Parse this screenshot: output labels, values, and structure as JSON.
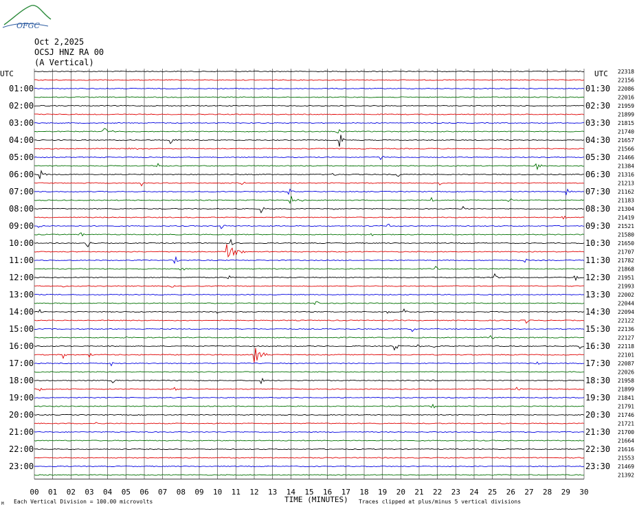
{
  "logo_text": "OFGC",
  "header": {
    "date": "Oct 2,2025",
    "station": "OCSJ HNZ RA 00",
    "component": "(A Vertical)"
  },
  "left_axis_title": "UTC",
  "right_axis_title": "UTC",
  "left_hour_labels": [
    "01:00",
    "02:00",
    "03:00",
    "04:00",
    "05:00",
    "06:00",
    "07:00",
    "08:00",
    "09:00",
    "10:00",
    "11:00",
    "12:00",
    "13:00",
    "14:00",
    "15:00",
    "16:00",
    "17:00",
    "18:00",
    "19:00",
    "20:00",
    "21:00",
    "22:00",
    "23:00"
  ],
  "right_hour_labels": [
    "01:30",
    "02:30",
    "03:30",
    "04:30",
    "05:30",
    "06:30",
    "07:30",
    "08:30",
    "09:30",
    "10:30",
    "11:30",
    "12:30",
    "13:30",
    "14:30",
    "15:30",
    "16:30",
    "17:30",
    "18:30",
    "19:30",
    "20:30",
    "21:30",
    "22:30",
    "23:30"
  ],
  "footer": {
    "left_note": "Each Vertical Division =  100.00 microvolts",
    "right_note": "Traces clipped at plus/minus 5 vertical divisions",
    "corner_mark": "M"
  },
  "colors": {
    "trace_cycle": [
      "#000000",
      "#e00000",
      "#0000e0",
      "#007000"
    ],
    "grid": "#000000"
  },
  "chart_data": {
    "type": "line",
    "title": "",
    "xlabel": "TIME (MINUTES)",
    "ylabel": "",
    "x_ticks": [
      "00",
      "01",
      "02",
      "03",
      "04",
      "05",
      "06",
      "07",
      "08",
      "09",
      "10",
      "11",
      "12",
      "13",
      "14",
      "15",
      "16",
      "17",
      "18",
      "19",
      "20",
      "21",
      "22",
      "23",
      "24",
      "25",
      "26",
      "27",
      "28",
      "29",
      "30"
    ],
    "xlim": [
      0,
      30
    ],
    "grid": true,
    "trace_count": 48,
    "trace_minutes": 30,
    "right_values": [
      "22318",
      "22156",
      "22086",
      "22016",
      "21959",
      "21899",
      "21815",
      "21740",
      "21657",
      "21566",
      "21466",
      "21384",
      "21316",
      "21213",
      "21162",
      "21183",
      "21304",
      "21419",
      "21521",
      "21580",
      "21650",
      "21707",
      "21782",
      "21868",
      "21951",
      "21993",
      "22002",
      "22044",
      "22094",
      "22122",
      "22136",
      "22127",
      "22118",
      "22101",
      "22087",
      "22026",
      "21958",
      "21899",
      "21841",
      "21791",
      "21746",
      "21721",
      "21700",
      "21664",
      "21616",
      "21553",
      "21469",
      "21392"
    ],
    "events": [
      {
        "trace": 7,
        "minute": 3.8,
        "amp": 6,
        "dur": 1.0
      },
      {
        "trace": 8,
        "minute": 7.4,
        "amp": 6,
        "dur": 0.5
      },
      {
        "trace": 9,
        "minute": 5.2,
        "amp": 3,
        "dur": 0.8
      },
      {
        "trace": 8,
        "minute": 16.7,
        "amp": 14,
        "dur": 0.4
      },
      {
        "trace": 7,
        "minute": 16.5,
        "amp": 6,
        "dur": 0.5
      },
      {
        "trace": 10,
        "minute": 18.9,
        "amp": 5,
        "dur": 0.3
      },
      {
        "trace": 11,
        "minute": 6.7,
        "amp": 6,
        "dur": 0.3
      },
      {
        "trace": 11,
        "minute": 27.4,
        "amp": 9,
        "dur": 0.4
      },
      {
        "trace": 12,
        "minute": 0.3,
        "amp": 8,
        "dur": 0.6
      },
      {
        "trace": 12,
        "minute": 16.2,
        "amp": 6,
        "dur": 0.4
      },
      {
        "trace": 12,
        "minute": 19.8,
        "amp": 5,
        "dur": 0.3
      },
      {
        "trace": 13,
        "minute": 5.9,
        "amp": 4,
        "dur": 0.3
      },
      {
        "trace": 13,
        "minute": 11.3,
        "amp": 5,
        "dur": 0.3
      },
      {
        "trace": 13,
        "minute": 22.1,
        "amp": 6,
        "dur": 0.3
      },
      {
        "trace": 14,
        "minute": 13.9,
        "amp": 6,
        "dur": 0.5
      },
      {
        "trace": 14,
        "minute": 29.0,
        "amp": 7,
        "dur": 0.4
      },
      {
        "trace": 15,
        "minute": 14.0,
        "amp": 8,
        "dur": 0.8
      },
      {
        "trace": 15,
        "minute": 21.7,
        "amp": 5,
        "dur": 0.3
      },
      {
        "trace": 15,
        "minute": 25.9,
        "amp": 5,
        "dur": 0.3
      },
      {
        "trace": 16,
        "minute": 12.4,
        "amp": 7,
        "dur": 0.4
      },
      {
        "trace": 16,
        "minute": 16.1,
        "amp": 5,
        "dur": 0.4
      },
      {
        "trace": 16,
        "minute": 23.4,
        "amp": 4,
        "dur": 0.3
      },
      {
        "trace": 17,
        "minute": 28.8,
        "amp": 5,
        "dur": 0.3
      },
      {
        "trace": 18,
        "minute": 0.2,
        "amp": 4,
        "dur": 0.4
      },
      {
        "trace": 18,
        "minute": 10.2,
        "amp": 7,
        "dur": 0.4
      },
      {
        "trace": 18,
        "minute": 19.3,
        "amp": 5,
        "dur": 0.3
      },
      {
        "trace": 19,
        "minute": 2.5,
        "amp": 6,
        "dur": 0.3
      },
      {
        "trace": 19,
        "minute": 18.3,
        "amp": 5,
        "dur": 0.3
      },
      {
        "trace": 20,
        "minute": 2.9,
        "amp": 6,
        "dur": 0.3
      },
      {
        "trace": 20,
        "minute": 10.7,
        "amp": 6,
        "dur": 0.3
      },
      {
        "trace": 21,
        "minute": 10.5,
        "amp": 12,
        "dur": 1.0
      },
      {
        "trace": 22,
        "minute": 7.7,
        "amp": 6,
        "dur": 0.4
      },
      {
        "trace": 22,
        "minute": 26.7,
        "amp": 6,
        "dur": 0.3
      },
      {
        "trace": 23,
        "minute": 8.0,
        "amp": 4,
        "dur": 0.4
      },
      {
        "trace": 23,
        "minute": 21.9,
        "amp": 5,
        "dur": 0.3
      },
      {
        "trace": 24,
        "minute": 10.6,
        "amp": 5,
        "dur": 0.3
      },
      {
        "trace": 24,
        "minute": 25.1,
        "amp": 7,
        "dur": 0.3
      },
      {
        "trace": 24,
        "minute": 29.5,
        "amp": 7,
        "dur": 0.3
      },
      {
        "trace": 25,
        "minute": 1.5,
        "amp": 4,
        "dur": 0.3
      },
      {
        "trace": 25,
        "minute": 7.4,
        "amp": 5,
        "dur": 0.3
      },
      {
        "trace": 27,
        "minute": 15.3,
        "amp": 5,
        "dur": 0.4
      },
      {
        "trace": 28,
        "minute": 0.3,
        "amp": 4,
        "dur": 0.3
      },
      {
        "trace": 28,
        "minute": 10.0,
        "amp": 5,
        "dur": 0.3
      },
      {
        "trace": 28,
        "minute": 19.2,
        "amp": 5,
        "dur": 0.3
      },
      {
        "trace": 28,
        "minute": 20.2,
        "amp": 6,
        "dur": 0.3
      },
      {
        "trace": 29,
        "minute": 26.9,
        "amp": 5,
        "dur": 0.3
      },
      {
        "trace": 30,
        "minute": 20.6,
        "amp": 5,
        "dur": 0.3
      },
      {
        "trace": 31,
        "minute": 4.9,
        "amp": 4,
        "dur": 0.3
      },
      {
        "trace": 31,
        "minute": 24.9,
        "amp": 5,
        "dur": 0.3
      },
      {
        "trace": 32,
        "minute": 19.7,
        "amp": 6,
        "dur": 0.3
      },
      {
        "trace": 32,
        "minute": 20.9,
        "amp": 5,
        "dur": 0.4
      },
      {
        "trace": 32,
        "minute": 21.7,
        "amp": 6,
        "dur": 0.3
      },
      {
        "trace": 32,
        "minute": 29.8,
        "amp": 4,
        "dur": 0.3
      },
      {
        "trace": 33,
        "minute": 1.6,
        "amp": 5,
        "dur": 0.3
      },
      {
        "trace": 33,
        "minute": 3.0,
        "amp": 5,
        "dur": 0.3
      },
      {
        "trace": 33,
        "minute": 12.0,
        "amp": 12,
        "dur": 0.9
      },
      {
        "trace": 34,
        "minute": 4.2,
        "amp": 4,
        "dur": 0.3
      },
      {
        "trace": 34,
        "minute": 27.3,
        "amp": 6,
        "dur": 0.5
      },
      {
        "trace": 36,
        "minute": 4.3,
        "amp": 5,
        "dur": 0.3
      },
      {
        "trace": 36,
        "minute": 12.4,
        "amp": 5,
        "dur": 0.3
      },
      {
        "trace": 36,
        "minute": 21.6,
        "amp": 4,
        "dur": 0.3
      },
      {
        "trace": 37,
        "minute": 0.3,
        "amp": 6,
        "dur": 0.3
      },
      {
        "trace": 37,
        "minute": 7.7,
        "amp": 4,
        "dur": 0.3
      },
      {
        "trace": 37,
        "minute": 26.3,
        "amp": 5,
        "dur": 0.3
      },
      {
        "trace": 39,
        "minute": 21.7,
        "amp": 7,
        "dur": 0.3
      },
      {
        "trace": 41,
        "minute": 3.4,
        "amp": 3,
        "dur": 0.3
      }
    ]
  }
}
